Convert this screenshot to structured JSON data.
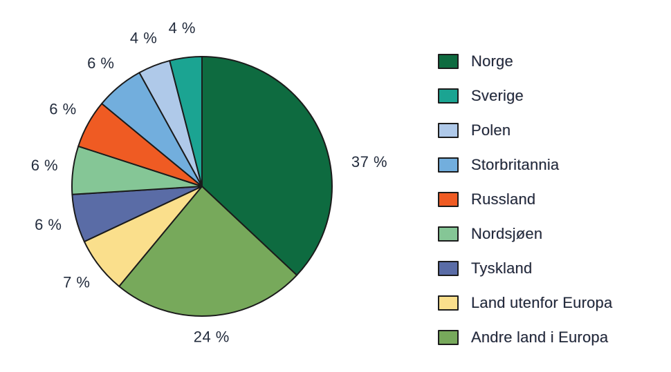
{
  "figure": {
    "background": "#ffffff",
    "text_color": "#232c3d",
    "outline_color": "#1b1b1b"
  },
  "chart_data": {
    "type": "pie",
    "title": "",
    "xlabel": "",
    "ylabel": "",
    "legend_position": "right",
    "start_angle_deg": 0,
    "layout_note": "First slice (Norge) drawn clockwise from 12 o'clock; remaining slices follow counterclockwise from 12 o'clock in legend order",
    "value_label_suffix": " %",
    "slices": [
      {
        "label": "Norge",
        "value": 37,
        "display": "37 %",
        "color": "#0e6b40"
      },
      {
        "label": "Sverige",
        "value": 4,
        "display": "4 %",
        "color": "#1ba492"
      },
      {
        "label": "Polen",
        "value": 4,
        "display": "4 %",
        "color": "#afc9e9"
      },
      {
        "label": "Storbritannia",
        "value": 6,
        "display": "6 %",
        "color": "#72aedd"
      },
      {
        "label": "Russland",
        "value": 6,
        "display": "6 %",
        "color": "#ef5b23"
      },
      {
        "label": "Nordsjøen",
        "value": 6,
        "display": "6 %",
        "color": "#85c696"
      },
      {
        "label": "Tyskland",
        "value": 6,
        "display": "6 %",
        "color": "#5a6ca6"
      },
      {
        "label": "Land utenfor Europa",
        "value": 7,
        "display": "7 %",
        "color": "#fadf8c"
      },
      {
        "label": "Andre land i Europa",
        "value": 24,
        "display": "24 %",
        "color": "#77a95b"
      }
    ]
  }
}
